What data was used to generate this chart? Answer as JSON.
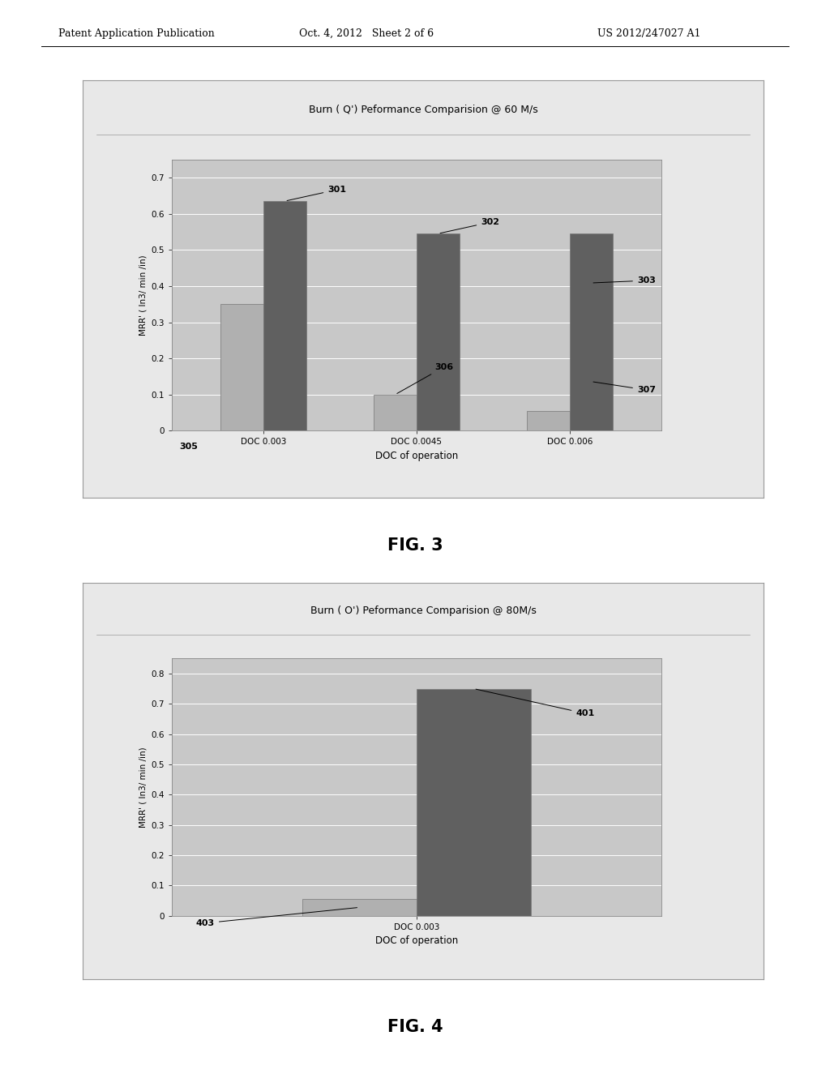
{
  "fig3": {
    "title": "Burn ( Q') Peformance Comparision @ 60 M/s",
    "xlabel": "DOC of operation",
    "ylabel": "MRR' ( In3/ min /in)",
    "categories": [
      "DOC 0.003",
      "DOC 0.0045",
      "DOC 0.006"
    ],
    "bar1_values": [
      0.35,
      0.1,
      0.055
    ],
    "bar2_values": [
      0.635,
      0.545,
      0.545
    ],
    "bar1_color": "#b0b0b0",
    "bar2_color": "#606060",
    "ylim": [
      0,
      0.75
    ],
    "yticks": [
      0,
      0.1,
      0.2,
      0.3,
      0.4,
      0.5,
      0.6,
      0.7
    ],
    "plot_bg": "#c8c8c8",
    "box_bg": "#e8e8e8"
  },
  "fig4": {
    "title": "Burn ( O') Peformance Comparision @ 80M/s",
    "xlabel": "DOC of operation",
    "ylabel": "MRR' ( In3/ min /in)",
    "categories": [
      "DOC 0.003"
    ],
    "bar1_values": [
      0.055
    ],
    "bar2_values": [
      0.75
    ],
    "bar1_color": "#b0b0b0",
    "bar2_color": "#606060",
    "ylim": [
      0,
      0.85
    ],
    "yticks": [
      0,
      0.1,
      0.2,
      0.3,
      0.4,
      0.5,
      0.6,
      0.7,
      0.8
    ],
    "plot_bg": "#c8c8c8",
    "box_bg": "#e8e8e8"
  },
  "header_left": "Patent Application Publication",
  "header_mid": "Oct. 4, 2012   Sheet 2 of 6",
  "header_right": "US 2012/247027 A1",
  "fig3_label": "FIG. 3",
  "fig4_label": "FIG. 4"
}
